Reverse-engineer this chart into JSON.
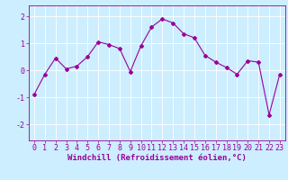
{
  "x": [
    0,
    1,
    2,
    3,
    4,
    5,
    6,
    7,
    8,
    9,
    10,
    11,
    12,
    13,
    14,
    15,
    16,
    17,
    18,
    19,
    20,
    21,
    22,
    23
  ],
  "y": [
    -0.9,
    -0.15,
    0.45,
    0.05,
    0.15,
    0.5,
    1.05,
    0.95,
    0.8,
    -0.05,
    0.9,
    1.6,
    1.9,
    1.75,
    1.35,
    1.2,
    0.55,
    0.3,
    0.1,
    -0.15,
    0.35,
    0.3,
    -1.65,
    -0.15
  ],
  "line_color": "#990099",
  "marker": "D",
  "markersize": 2,
  "linewidth": 0.8,
  "background_color": "#cceeff",
  "grid_color": "#ffffff",
  "xlabel": "Windchill (Refroidissement éolien,°C)",
  "xlabel_fontsize": 6.5,
  "tick_fontsize": 6,
  "tick_color": "#990099",
  "xlabel_color": "#990099",
  "xlim": [
    -0.5,
    23.5
  ],
  "ylim": [
    -2.6,
    2.4
  ],
  "yticks": [
    -2,
    -1,
    0,
    1,
    2
  ],
  "xticks": [
    0,
    1,
    2,
    3,
    4,
    5,
    6,
    7,
    8,
    9,
    10,
    11,
    12,
    13,
    14,
    15,
    16,
    17,
    18,
    19,
    20,
    21,
    22,
    23
  ]
}
